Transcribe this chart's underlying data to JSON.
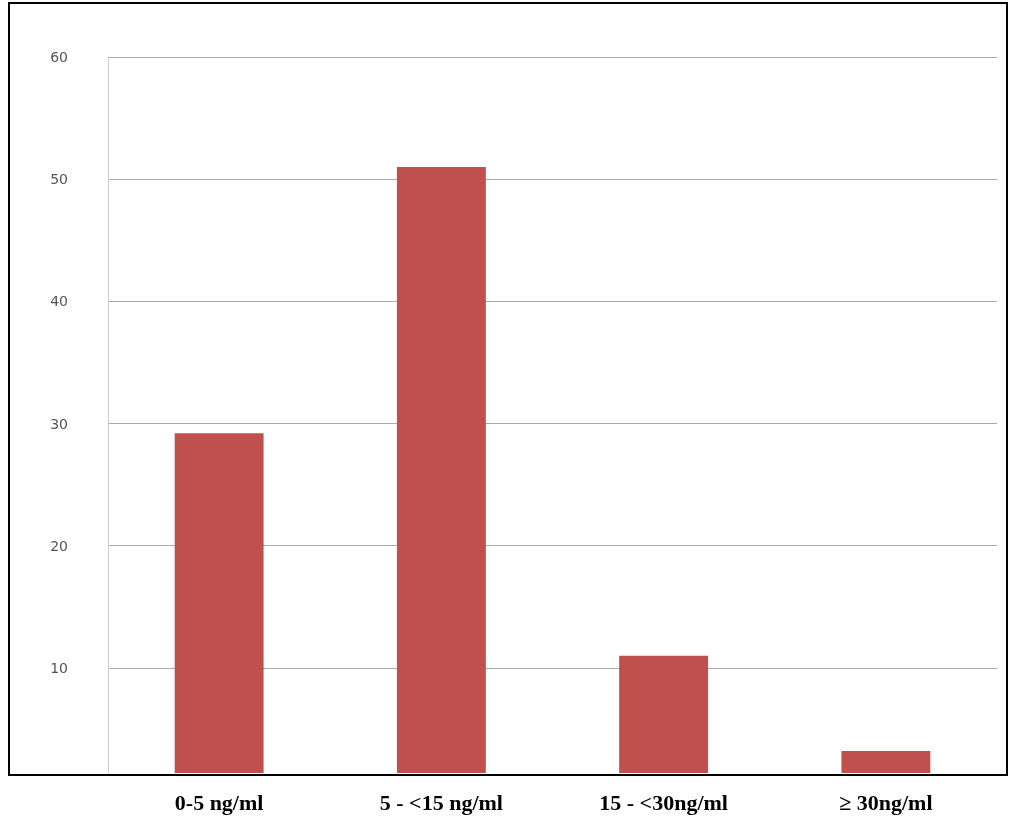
{
  "chart_data": {
    "type": "bar",
    "categories": [
      "0-5 ng/ml",
      "5 - <15 ng/ml",
      "15 - <30ng/ml",
      "≥ 30ng/ml"
    ],
    "values": [
      29.2,
      51,
      11,
      3.2
    ],
    "color": "#c0504d",
    "ylim": [
      1.4,
      60
    ],
    "yticks": [
      10,
      20,
      30,
      40,
      50,
      60
    ],
    "grid": "y"
  }
}
